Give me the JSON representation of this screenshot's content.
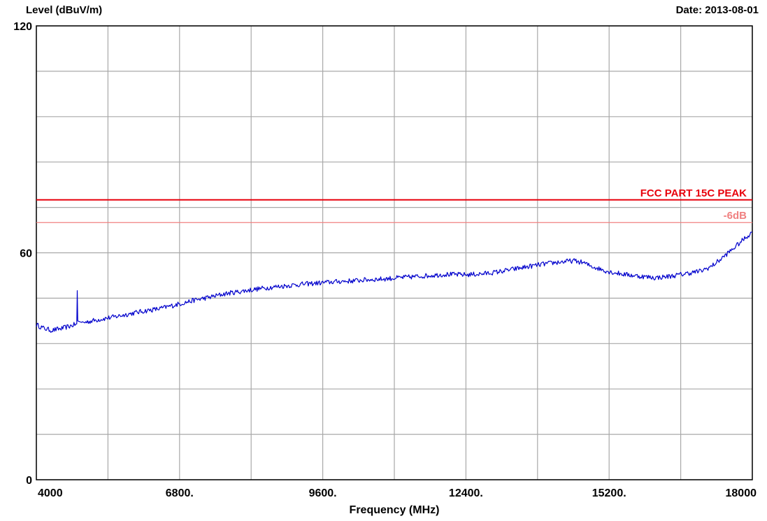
{
  "chart_data": {
    "type": "line",
    "ylabel": "Level (dBuV/m)",
    "xlabel": "Frequency (MHz)",
    "date": "Date: 2013-08-01",
    "xlim": [
      4000,
      18000
    ],
    "ylim": [
      0,
      120
    ],
    "x_tick_labels": [
      {
        "value": 4000,
        "label": "4000"
      },
      {
        "value": 6800,
        "label": "6800."
      },
      {
        "value": 9600,
        "label": "9600."
      },
      {
        "value": 12400,
        "label": "12400."
      },
      {
        "value": 15200,
        "label": "15200."
      },
      {
        "value": 18000,
        "label": "18000"
      }
    ],
    "y_tick_labels": [
      {
        "value": 120,
        "label": "120"
      },
      {
        "value": 60,
        "label": "60"
      },
      {
        "value": 0,
        "label": "0"
      }
    ],
    "grid": true,
    "grid_x_values": [
      4000,
      5400,
      6800,
      8200,
      9600,
      11000,
      12400,
      13800,
      15200,
      16600,
      18000
    ],
    "grid_y_values": [
      0,
      12,
      24,
      36,
      48,
      60,
      72,
      84,
      96,
      108,
      120
    ],
    "limit_lines": [
      {
        "name": "FCC PART 15C PEAK",
        "value": 74,
        "color": "#e8000b"
      },
      {
        "name": "-6dB",
        "value": 68,
        "color": "#f08080"
      }
    ],
    "series": [
      {
        "color": "#0000cc",
        "x": [
          4000,
          4150,
          4300,
          4500,
          4700,
          4790,
          4800,
          4810,
          4900,
          5200,
          5500,
          5800,
          6100,
          6400,
          6800,
          7100,
          7400,
          7700,
          8000,
          8300,
          8600,
          8900,
          9200,
          9600,
          9900,
          10200,
          10500,
          10800,
          11100,
          11400,
          11700,
          12000,
          12400,
          12700,
          13000,
          13300,
          13600,
          13900,
          14200,
          14500,
          14700,
          14800,
          15000,
          15200,
          15500,
          15800,
          16100,
          16400,
          16700,
          17000,
          17200,
          17400,
          17600,
          17800,
          18000
        ],
        "y": [
          41.0,
          40.0,
          39.5,
          40.0,
          40.8,
          41.2,
          50.0,
          42.0,
          41.5,
          42.3,
          43.0,
          43.8,
          44.6,
          45.2,
          46.5,
          47.5,
          48.3,
          49.2,
          49.8,
          50.4,
          50.9,
          51.3,
          51.7,
          52.1,
          52.4,
          52.6,
          52.9,
          53.1,
          53.4,
          53.7,
          54.0,
          54.3,
          54.2,
          54.4,
          54.9,
          55.6,
          56.3,
          57.0,
          57.5,
          57.9,
          57.4,
          56.7,
          55.8,
          55.0,
          54.3,
          53.8,
          53.4,
          53.8,
          54.5,
          55.2,
          56.4,
          58.5,
          60.8,
          63.2,
          65.5
        ]
      }
    ]
  }
}
